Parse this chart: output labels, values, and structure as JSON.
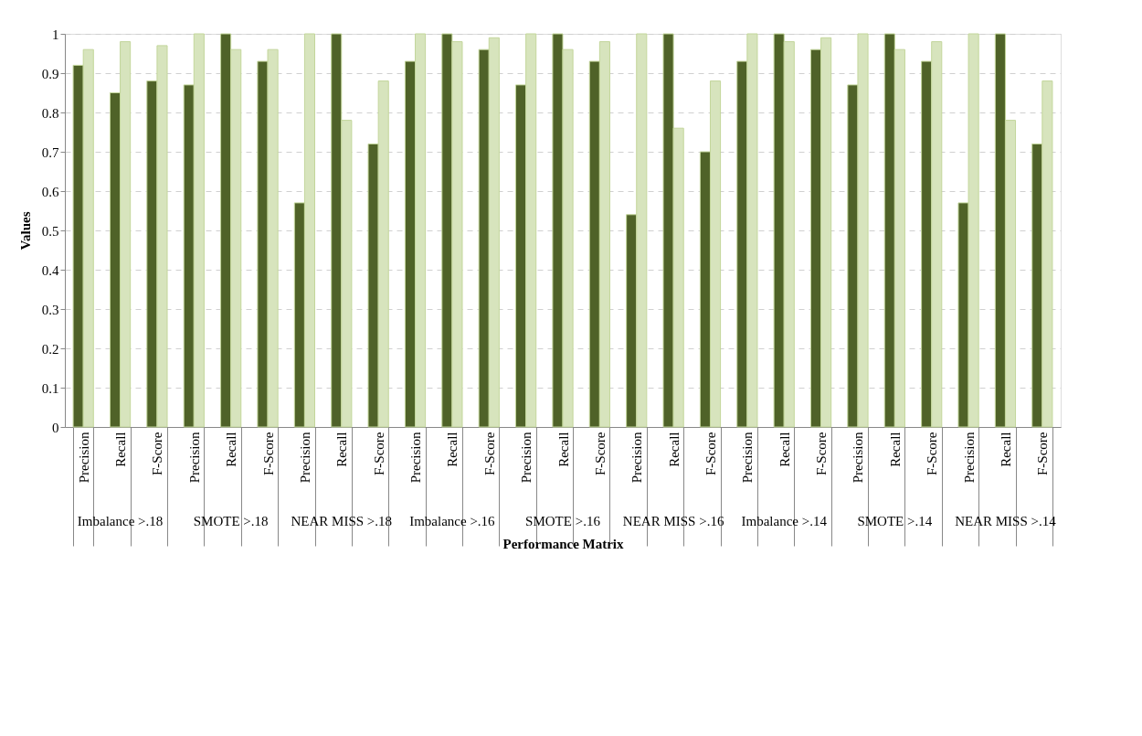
{
  "chart_data": {
    "type": "bar",
    "xlabel": "Performance Matrix",
    "ylabel": "Values",
    "categories": [
      "Precision",
      "Recall",
      "F-Score",
      "Precision",
      "Recall",
      "F-Score",
      "Precision",
      "Recall",
      "F-Score",
      "Precision",
      "Recall",
      "F-Score",
      "Precision",
      "Recall",
      "F-Score",
      "Precision",
      "Recall",
      "F-Score",
      "Precision",
      "Recall",
      "F-Score",
      "Precision",
      "Recall",
      "F-Score",
      "Precision",
      "Recall",
      "F-Score"
    ],
    "series": [
      {
        "color": "#4f6228",
        "values": [
          0.92,
          0.85,
          0.88,
          0.87,
          1,
          0.93,
          0.57,
          1,
          0.72,
          0.93,
          1,
          0.96,
          0.87,
          1,
          0.93,
          0.54,
          1,
          0.7,
          0.93,
          1,
          0.96,
          0.87,
          1,
          0.93,
          0.57,
          1,
          0.72
        ]
      },
      {
        "color": "#d7e4bd",
        "values": [
          0.96,
          0.98,
          0.97,
          1,
          0.96,
          0.96,
          1,
          0.78,
          0.88,
          1,
          0.98,
          0.99,
          1,
          0.96,
          0.98,
          1,
          0.76,
          0.88,
          1,
          0.98,
          0.99,
          1,
          0.96,
          0.98,
          1,
          0.78,
          0.88
        ]
      }
    ],
    "annotations": [
      "Imbalance >.18",
      "SMOTE >.18",
      "NEAR MISS >.18",
      "Imbalance >.16",
      "SMOTE >.16",
      "NEAR MISS >.16",
      "Imbalance >.14",
      "SMOTE >.14",
      "NEAR MISS >.14"
    ],
    "ylim": [
      0,
      1
    ],
    "yticks": [
      0,
      0.1,
      0.2,
      0.3,
      0.4,
      0.5,
      0.6,
      0.7,
      0.8,
      0.9,
      1
    ],
    "grid": "y",
    "legend": false
  }
}
